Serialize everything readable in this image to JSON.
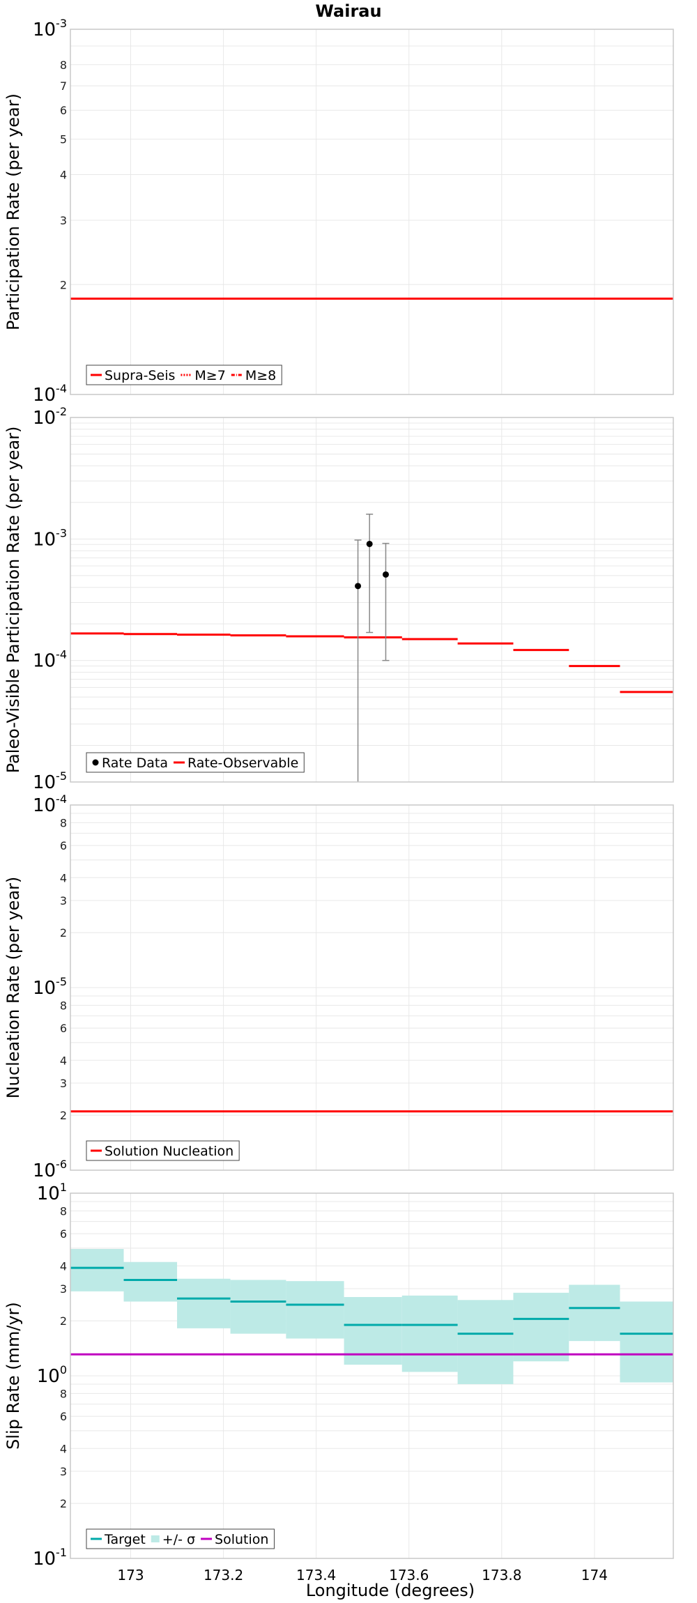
{
  "figure_title": "Wairau",
  "x_axis_label": "Longitude (degrees)",
  "x_ticks": [
    173,
    173.2,
    173.4,
    173.6,
    173.8,
    174
  ],
  "x_range": [
    172.87,
    174.17
  ],
  "colors": {
    "red": "#ff0000",
    "cyan": "#00aaaa",
    "cyan_band": "#bdeae6",
    "magenta": "#c000c0",
    "black": "#000000",
    "errorbar": "#888888",
    "grid": "#e8e8e8",
    "frame": "#c8c8c8"
  },
  "chart_data": [
    {
      "id": "participation",
      "type": "line",
      "ylabel": "Participation Rate (per year)",
      "yscale": "log",
      "ylim": [
        0.0001,
        0.001
      ],
      "ticks": [
        {
          "value": 0.001,
          "base": "10",
          "exp": "-3",
          "major": true
        },
        {
          "value": 0.0008,
          "label": "8"
        },
        {
          "value": 0.0007,
          "label": "7"
        },
        {
          "value": 0.0006,
          "label": "6"
        },
        {
          "value": 0.0005,
          "label": "5"
        },
        {
          "value": 0.0004,
          "label": "4"
        },
        {
          "value": 0.0003,
          "label": "3"
        },
        {
          "value": 0.0002,
          "label": "2"
        },
        {
          "value": 0.0001,
          "base": "10",
          "exp": "-4",
          "major": true
        }
      ],
      "legend": [
        "Supra-Seis",
        "M≥7",
        "M≥8"
      ],
      "series": [
        {
          "name": "Supra-Seis",
          "style": "solid",
          "x": [
            172.87,
            174.17
          ],
          "y": [
            0.000183,
            0.000183
          ]
        },
        {
          "name": "M≥7",
          "style": "dotted",
          "x": [
            172.87,
            174.17
          ],
          "y": [
            0.000183,
            0.000183
          ]
        },
        {
          "name": "M≥8",
          "style": "dashdot",
          "x": [
            172.87,
            174.17
          ],
          "y": [
            0.000183,
            0.000183
          ]
        }
      ]
    },
    {
      "id": "paleo",
      "type": "line",
      "ylabel": "Paleo-Visible Participation Rate (per year)",
      "yscale": "log",
      "ylim": [
        1e-05,
        0.01
      ],
      "ticks": [
        {
          "value": 0.01,
          "base": "10",
          "exp": "-2",
          "major": true
        },
        {
          "value": 0.001,
          "base": "10",
          "exp": "-3",
          "major": true
        },
        {
          "value": 0.0001,
          "base": "10",
          "exp": "-4",
          "major": true
        },
        {
          "value": 1e-05,
          "base": "10",
          "exp": "-5",
          "major": true
        }
      ],
      "legend": [
        "Rate Data",
        "Rate-Observable"
      ],
      "steps": [
        {
          "x0": 172.87,
          "x1": 172.985,
          "y": 0.000167
        },
        {
          "x0": 172.985,
          "x1": 173.1,
          "y": 0.000165
        },
        {
          "x0": 173.1,
          "x1": 173.215,
          "y": 0.000163
        },
        {
          "x0": 173.215,
          "x1": 173.335,
          "y": 0.000161
        },
        {
          "x0": 173.335,
          "x1": 173.46,
          "y": 0.000158
        },
        {
          "x0": 173.46,
          "x1": 173.585,
          "y": 0.000155
        },
        {
          "x0": 173.585,
          "x1": 173.705,
          "y": 0.00015
        },
        {
          "x0": 173.705,
          "x1": 173.825,
          "y": 0.000138
        },
        {
          "x0": 173.825,
          "x1": 173.945,
          "y": 0.000122
        },
        {
          "x0": 173.945,
          "x1": 174.055,
          "y": 9e-05
        },
        {
          "x0": 174.055,
          "x1": 174.17,
          "y": 5.5e-05
        }
      ],
      "points": [
        {
          "x": 173.49,
          "y": 0.00041,
          "lo": 1e-05,
          "hi": 0.00098
        },
        {
          "x": 173.515,
          "y": 0.00091,
          "lo": 0.00017,
          "hi": 0.0016
        },
        {
          "x": 173.55,
          "y": 0.00051,
          "lo": 0.0001,
          "hi": 0.00092
        }
      ]
    },
    {
      "id": "nucleation",
      "type": "line",
      "ylabel": "Nucleation Rate (per year)",
      "yscale": "log",
      "ylim": [
        1e-06,
        0.0001
      ],
      "ticks": [
        {
          "value": 0.0001,
          "base": "10",
          "exp": "-4",
          "major": true
        },
        {
          "value": 8e-05,
          "label": "8"
        },
        {
          "value": 6e-05,
          "label": "6"
        },
        {
          "value": 4e-05,
          "label": "4"
        },
        {
          "value": 3e-05,
          "label": "3"
        },
        {
          "value": 2e-05,
          "label": "2"
        },
        {
          "value": 1e-05,
          "base": "10",
          "exp": "-5",
          "major": true
        },
        {
          "value": 8e-06,
          "label": "8"
        },
        {
          "value": 6e-06,
          "label": "6"
        },
        {
          "value": 4e-06,
          "label": "4"
        },
        {
          "value": 3e-06,
          "label": "3"
        },
        {
          "value": 2e-06,
          "label": "2"
        },
        {
          "value": 1e-06,
          "base": "10",
          "exp": "-6",
          "major": true
        }
      ],
      "legend": [
        "Solution Nucleation"
      ],
      "series": [
        {
          "name": "Solution Nucleation",
          "style": "solid",
          "x": [
            172.87,
            174.17
          ],
          "y": [
            2.1e-06,
            2.1e-06
          ]
        }
      ]
    },
    {
      "id": "slip",
      "type": "line",
      "ylabel": "Slip Rate (mm/yr)",
      "yscale": "log",
      "ylim": [
        0.1,
        10
      ],
      "ticks": [
        {
          "value": 10,
          "base": "10",
          "exp": "1",
          "major": true
        },
        {
          "value": 8,
          "label": "8"
        },
        {
          "value": 6,
          "label": "6"
        },
        {
          "value": 4,
          "label": "4"
        },
        {
          "value": 3,
          "label": "3"
        },
        {
          "value": 2,
          "label": "2"
        },
        {
          "value": 1,
          "base": "10",
          "exp": "0",
          "major": true
        },
        {
          "value": 0.8,
          "label": "8"
        },
        {
          "value": 0.6,
          "label": "6"
        },
        {
          "value": 0.4,
          "label": "4"
        },
        {
          "value": 0.3,
          "label": "3"
        },
        {
          "value": 0.2,
          "label": "2"
        },
        {
          "value": 0.1,
          "base": "10",
          "exp": "-1",
          "major": true
        }
      ],
      "legend": [
        "Target",
        "+/- σ",
        "Solution"
      ],
      "bins": [
        {
          "x0": 172.87,
          "x1": 172.985,
          "target": 3.9,
          "lo": 2.9,
          "hi": 4.95
        },
        {
          "x0": 172.985,
          "x1": 173.1,
          "target": 3.35,
          "lo": 2.55,
          "hi": 4.2
        },
        {
          "x0": 173.1,
          "x1": 173.215,
          "target": 2.65,
          "lo": 1.82,
          "hi": 3.4
        },
        {
          "x0": 173.215,
          "x1": 173.335,
          "target": 2.55,
          "lo": 1.7,
          "hi": 3.35
        },
        {
          "x0": 173.335,
          "x1": 173.46,
          "target": 2.45,
          "lo": 1.6,
          "hi": 3.3
        },
        {
          "x0": 173.46,
          "x1": 173.585,
          "target": 1.9,
          "lo": 1.15,
          "hi": 2.7
        },
        {
          "x0": 173.585,
          "x1": 173.705,
          "target": 1.9,
          "lo": 1.05,
          "hi": 2.75
        },
        {
          "x0": 173.705,
          "x1": 173.825,
          "target": 1.7,
          "lo": 0.9,
          "hi": 2.6
        },
        {
          "x0": 173.825,
          "x1": 173.945,
          "target": 2.05,
          "lo": 1.2,
          "hi": 2.85
        },
        {
          "x0": 173.945,
          "x1": 174.055,
          "target": 2.35,
          "lo": 1.55,
          "hi": 3.15
        },
        {
          "x0": 174.055,
          "x1": 174.17,
          "target": 1.7,
          "lo": 0.92,
          "hi": 2.55
        }
      ],
      "solution": 1.31
    }
  ]
}
